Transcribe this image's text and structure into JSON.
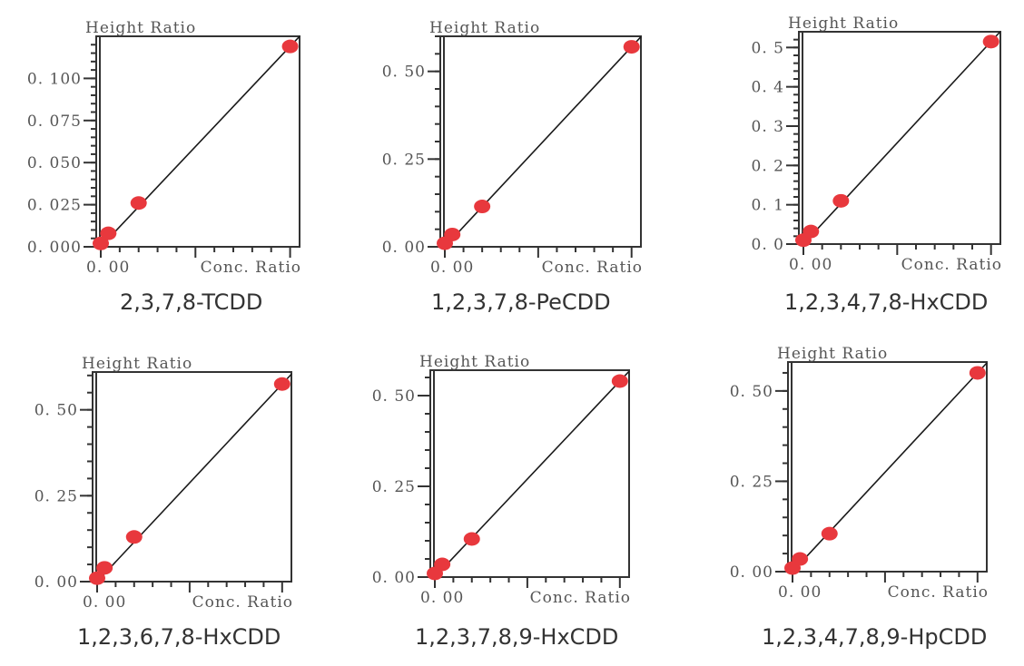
{
  "colors": {
    "point": "#e8383d",
    "line": "#1a1a1a",
    "frame": "#333333",
    "text": "#555555"
  },
  "chart_data": [
    {
      "type": "scatter",
      "title": "2,3,7,8-TCDD",
      "ylabel": "Height Ratio",
      "xlabel": "Conc. Ratio",
      "x_tick_labels": [
        "0.00"
      ],
      "y_ticks": [
        0.0,
        0.025,
        0.05,
        0.075,
        0.1
      ],
      "y_tick_labels": [
        "0.000",
        "0.025",
        "0.050",
        "0.075",
        "0.100"
      ],
      "ylim": [
        0,
        0.125
      ],
      "xlim": [
        0,
        1.05
      ],
      "points": [
        {
          "x": 0.0,
          "y": 0.002
        },
        {
          "x": 0.04,
          "y": 0.008
        },
        {
          "x": 0.2,
          "y": 0.026
        },
        {
          "x": 1.0,
          "y": 0.119
        }
      ],
      "fit_line": {
        "slope": 0.119,
        "intercept": 0.0
      },
      "grid": false
    },
    {
      "type": "scatter",
      "title": "1,2,3,7,8-PeCDD",
      "ylabel": "Height Ratio",
      "xlabel": "Conc. Ratio",
      "x_tick_labels": [
        "0.00"
      ],
      "y_ticks": [
        0.0,
        0.25,
        0.5
      ],
      "y_tick_labels": [
        "0.00",
        "0.25",
        "0.50"
      ],
      "ylim": [
        0,
        0.6
      ],
      "xlim": [
        0,
        1.05
      ],
      "points": [
        {
          "x": 0.0,
          "y": 0.01
        },
        {
          "x": 0.04,
          "y": 0.035
        },
        {
          "x": 0.2,
          "y": 0.115
        },
        {
          "x": 1.0,
          "y": 0.57
        }
      ],
      "fit_line": {
        "slope": 0.57,
        "intercept": 0.0
      },
      "grid": false
    },
    {
      "type": "scatter",
      "title": "1,2,3,4,7,8-HxCDD",
      "ylabel": "Height Ratio",
      "xlabel": "Conc. Ratio",
      "x_tick_labels": [
        "0.00"
      ],
      "y_ticks": [
        0.0,
        0.1,
        0.2,
        0.3,
        0.4,
        0.5
      ],
      "y_tick_labels": [
        "0.0",
        "0.1",
        "0.2",
        "0.3",
        "0.4",
        "0.5"
      ],
      "ylim": [
        0,
        0.54
      ],
      "xlim": [
        0,
        1.05
      ],
      "points": [
        {
          "x": 0.0,
          "y": 0.01
        },
        {
          "x": 0.04,
          "y": 0.032
        },
        {
          "x": 0.2,
          "y": 0.11
        },
        {
          "x": 1.0,
          "y": 0.515
        }
      ],
      "fit_line": {
        "slope": 0.515,
        "intercept": 0.0
      },
      "grid": false
    },
    {
      "type": "scatter",
      "title": "1,2,3,6,7,8-HxCDD",
      "ylabel": "Height Ratio",
      "xlabel": "Conc. Ratio",
      "x_tick_labels": [
        "0.00"
      ],
      "y_ticks": [
        0.0,
        0.25,
        0.5
      ],
      "y_tick_labels": [
        "0.00",
        "0.25",
        "0.50"
      ],
      "ylim": [
        0,
        0.61
      ],
      "xlim": [
        0,
        1.05
      ],
      "points": [
        {
          "x": 0.0,
          "y": 0.01
        },
        {
          "x": 0.04,
          "y": 0.04
        },
        {
          "x": 0.2,
          "y": 0.13
        },
        {
          "x": 1.0,
          "y": 0.575
        }
      ],
      "fit_line": {
        "slope": 0.575,
        "intercept": 0.0
      },
      "grid": false
    },
    {
      "type": "scatter",
      "title": "1,2,3,7,8,9-HxCDD",
      "ylabel": "Height Ratio",
      "xlabel": "Conc. Ratio",
      "x_tick_labels": [
        "0.00"
      ],
      "y_ticks": [
        0.0,
        0.25,
        0.5
      ],
      "y_tick_labels": [
        "0.00",
        "0.25",
        "0.50"
      ],
      "ylim": [
        0,
        0.57
      ],
      "xlim": [
        0,
        1.05
      ],
      "points": [
        {
          "x": 0.0,
          "y": 0.01
        },
        {
          "x": 0.04,
          "y": 0.035
        },
        {
          "x": 0.2,
          "y": 0.105
        },
        {
          "x": 1.0,
          "y": 0.54
        }
      ],
      "fit_line": {
        "slope": 0.54,
        "intercept": 0.0
      },
      "grid": false
    },
    {
      "type": "scatter",
      "title": "1,2,3,4,7,8,9-HpCDD",
      "ylabel": "Height Ratio",
      "xlabel": "Conc. Ratio",
      "x_tick_labels": [
        "0.00"
      ],
      "y_ticks": [
        0.0,
        0.25,
        0.5
      ],
      "y_tick_labels": [
        "0.00",
        "0.25",
        "0.50"
      ],
      "ylim": [
        0,
        0.58
      ],
      "xlim": [
        0,
        1.05
      ],
      "points": [
        {
          "x": 0.0,
          "y": 0.01
        },
        {
          "x": 0.04,
          "y": 0.035
        },
        {
          "x": 0.2,
          "y": 0.105
        },
        {
          "x": 1.0,
          "y": 0.55
        }
      ],
      "fit_line": {
        "slope": 0.55,
        "intercept": 0.0
      },
      "grid": false
    }
  ]
}
